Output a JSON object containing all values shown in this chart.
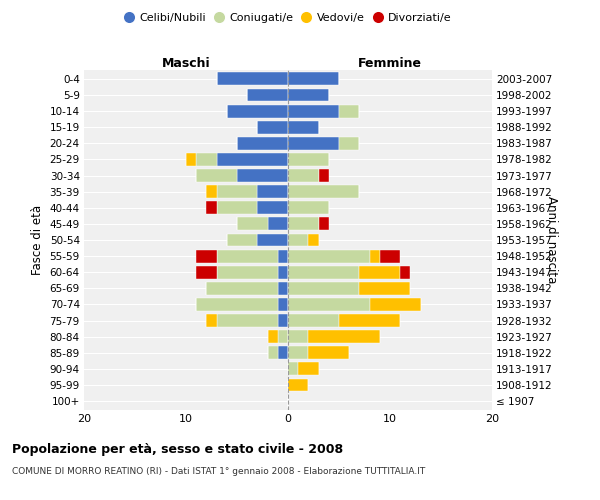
{
  "age_groups": [
    "100+",
    "95-99",
    "90-94",
    "85-89",
    "80-84",
    "75-79",
    "70-74",
    "65-69",
    "60-64",
    "55-59",
    "50-54",
    "45-49",
    "40-44",
    "35-39",
    "30-34",
    "25-29",
    "20-24",
    "15-19",
    "10-14",
    "5-9",
    "0-4"
  ],
  "birth_years": [
    "≤ 1907",
    "1908-1912",
    "1913-1917",
    "1918-1922",
    "1923-1927",
    "1928-1932",
    "1933-1937",
    "1938-1942",
    "1943-1947",
    "1948-1952",
    "1953-1957",
    "1958-1962",
    "1963-1967",
    "1968-1972",
    "1973-1977",
    "1978-1982",
    "1983-1987",
    "1988-1992",
    "1993-1997",
    "1998-2002",
    "2003-2007"
  ],
  "male": {
    "celibi": [
      0,
      0,
      0,
      1,
      0,
      1,
      1,
      1,
      1,
      1,
      3,
      2,
      3,
      3,
      5,
      7,
      5,
      3,
      6,
      4,
      7
    ],
    "coniugati": [
      0,
      0,
      0,
      1,
      1,
      6,
      8,
      7,
      6,
      6,
      3,
      3,
      4,
      4,
      4,
      2,
      0,
      0,
      0,
      0,
      0
    ],
    "vedovi": [
      0,
      0,
      0,
      0,
      1,
      1,
      0,
      0,
      0,
      0,
      0,
      0,
      0,
      1,
      0,
      1,
      0,
      0,
      0,
      0,
      0
    ],
    "divorziati": [
      0,
      0,
      0,
      0,
      0,
      0,
      0,
      0,
      2,
      2,
      0,
      0,
      1,
      0,
      0,
      0,
      0,
      0,
      0,
      0,
      0
    ]
  },
  "female": {
    "nubili": [
      0,
      0,
      0,
      0,
      0,
      0,
      0,
      0,
      0,
      0,
      0,
      0,
      0,
      0,
      0,
      0,
      5,
      3,
      5,
      4,
      5
    ],
    "coniugate": [
      0,
      0,
      1,
      2,
      2,
      5,
      8,
      7,
      7,
      8,
      2,
      3,
      4,
      7,
      3,
      4,
      2,
      0,
      2,
      0,
      0
    ],
    "vedove": [
      0,
      2,
      2,
      4,
      7,
      6,
      5,
      5,
      4,
      1,
      1,
      0,
      0,
      0,
      0,
      0,
      0,
      0,
      0,
      0,
      0
    ],
    "divorziate": [
      0,
      0,
      0,
      0,
      0,
      0,
      0,
      0,
      1,
      2,
      0,
      1,
      0,
      0,
      1,
      0,
      0,
      0,
      0,
      0,
      0
    ]
  },
  "colors": {
    "celibi": "#4472c4",
    "coniugati": "#c5d9a0",
    "vedovi": "#ffc000",
    "divorziati": "#cc0000"
  },
  "xlim": 20,
  "title": "Popolazione per età, sesso e stato civile - 2008",
  "subtitle": "COMUNE DI MORRO REATINO (RI) - Dati ISTAT 1° gennaio 2008 - Elaborazione TUTTITALIA.IT",
  "ylabel_left": "Fasce di età",
  "ylabel_right": "Anni di nascita",
  "legend_labels": [
    "Celibi/Nubili",
    "Coniugati/e",
    "Vedovi/e",
    "Divorziati/e"
  ],
  "background_color": "#f0f0f0"
}
